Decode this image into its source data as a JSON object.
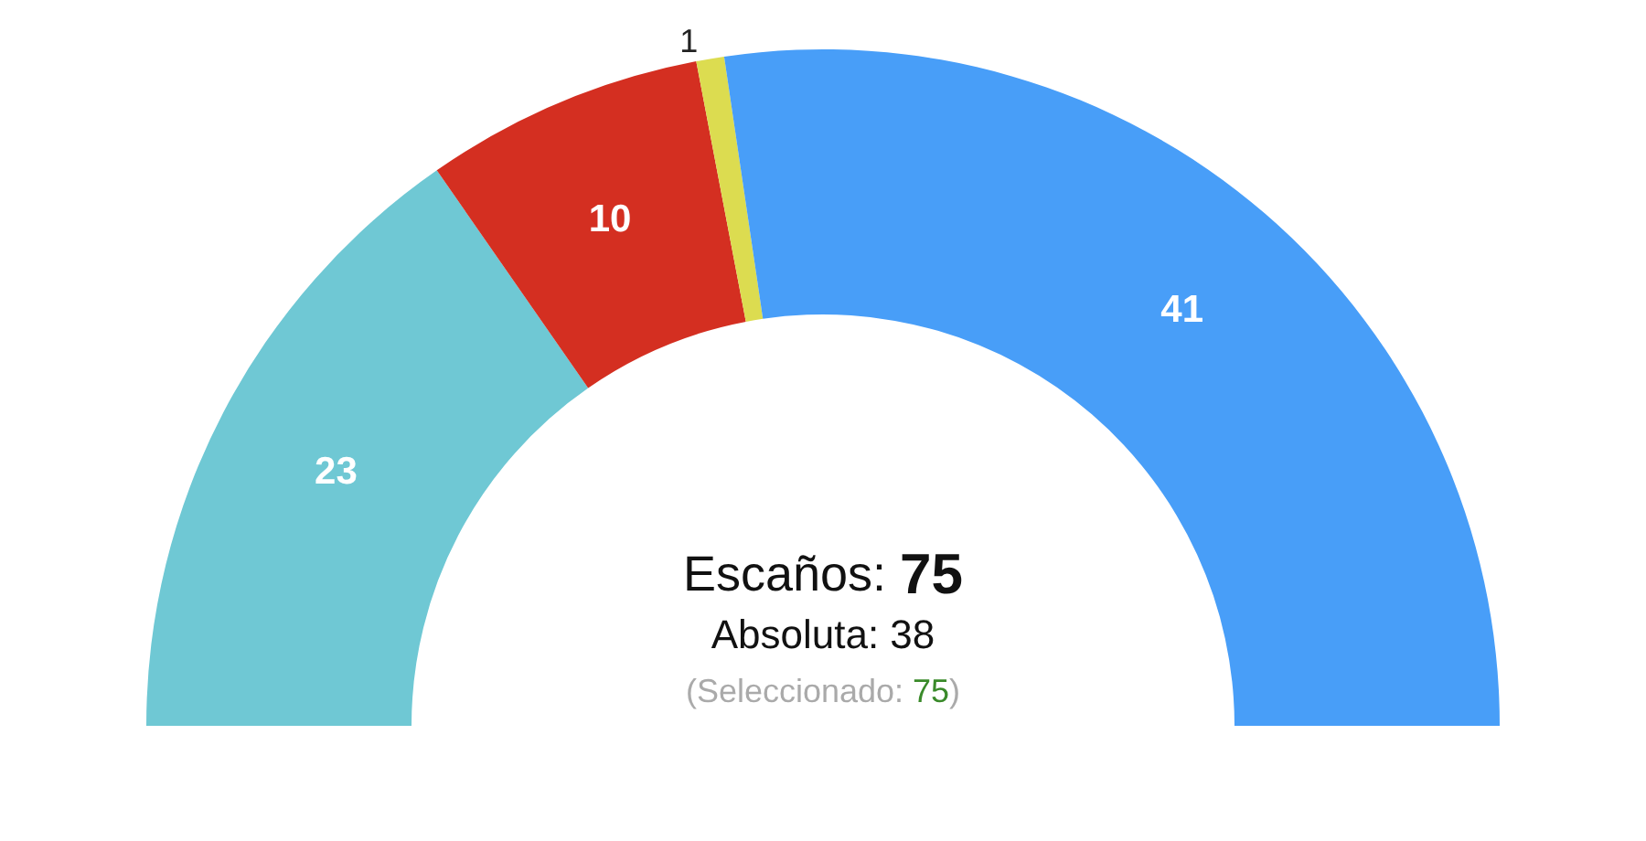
{
  "chart_data": {
    "type": "donut",
    "categories": [
      null,
      null,
      null,
      null
    ],
    "values": [
      23,
      10,
      1,
      41
    ],
    "colors": [
      "#6fc8d4",
      "#d42f21",
      "#dcdc50",
      "#489ef8"
    ],
    "data_labels": true,
    "annotations": [
      "Escaños: 75",
      "Absoluta: 38",
      "(Seleccionado: 75)"
    ]
  }
}
